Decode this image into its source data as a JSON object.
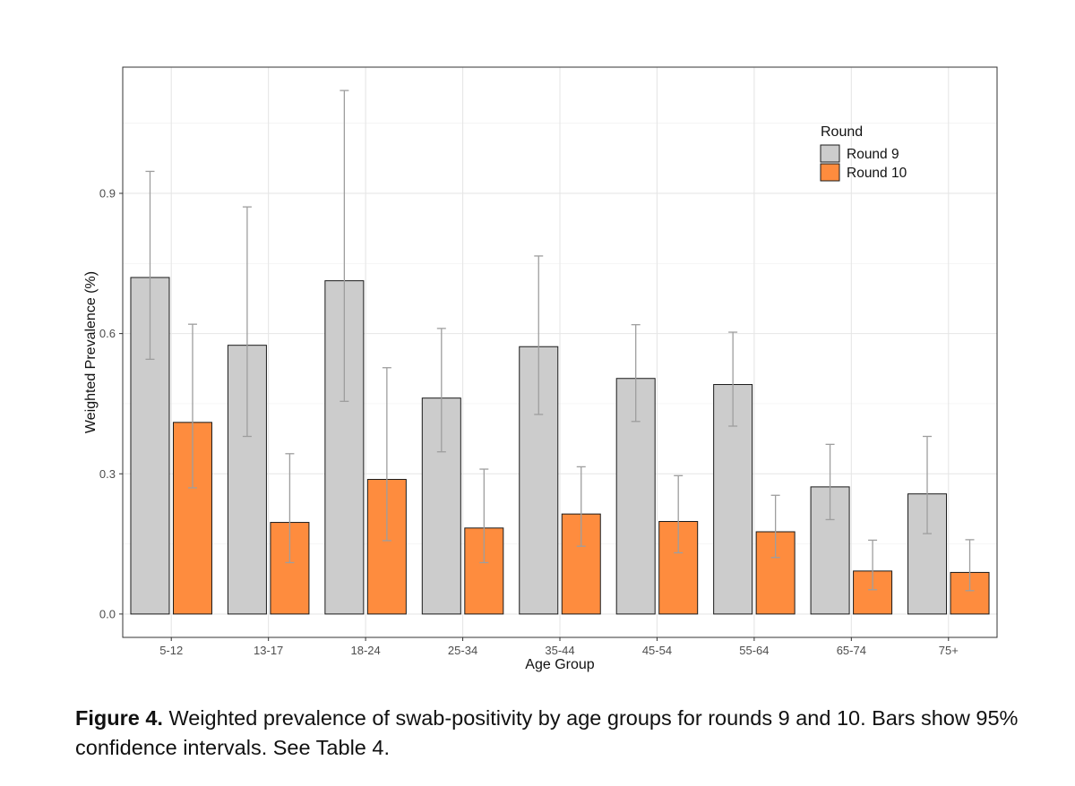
{
  "chart_data": {
    "type": "bar",
    "title": "",
    "xlabel": "Age Group",
    "ylabel": "Weighted Prevalence (%)",
    "ylim": [
      -0.05,
      1.17
    ],
    "yticks": [
      0.0,
      0.3,
      0.6,
      0.9
    ],
    "ytick_labels": [
      "0.0",
      "0.3",
      "0.6",
      "0.9"
    ],
    "grid": true,
    "legend": {
      "title": "Round",
      "position": "top-right"
    },
    "categories": [
      "5-12",
      "13-17",
      "18-24",
      "25-34",
      "35-44",
      "45-54",
      "55-64",
      "65-74",
      "75+"
    ],
    "series": [
      {
        "name": "Round 9",
        "color": "#cccccc",
        "values": [
          0.72,
          0.575,
          0.713,
          0.462,
          0.572,
          0.504,
          0.491,
          0.272,
          0.257
        ],
        "ci_lower": [
          0.545,
          0.38,
          0.455,
          0.347,
          0.427,
          0.412,
          0.402,
          0.202,
          0.172
        ],
        "ci_upper": [
          0.947,
          0.871,
          1.12,
          0.611,
          0.766,
          0.619,
          0.603,
          0.363,
          0.38
        ]
      },
      {
        "name": "Round 10",
        "color": "#fe8c3e",
        "values": [
          0.41,
          0.196,
          0.288,
          0.184,
          0.214,
          0.198,
          0.176,
          0.092,
          0.089
        ],
        "ci_lower": [
          0.27,
          0.11,
          0.157,
          0.11,
          0.145,
          0.131,
          0.121,
          0.052,
          0.05
        ],
        "ci_upper": [
          0.62,
          0.343,
          0.527,
          0.31,
          0.315,
          0.296,
          0.254,
          0.158,
          0.159
        ]
      }
    ]
  },
  "caption": {
    "label": "Figure 4.",
    "text": " Weighted prevalence of swab-positivity by age groups for rounds 9 and 10. Bars show 95% confidence intervals. See Table 4."
  }
}
